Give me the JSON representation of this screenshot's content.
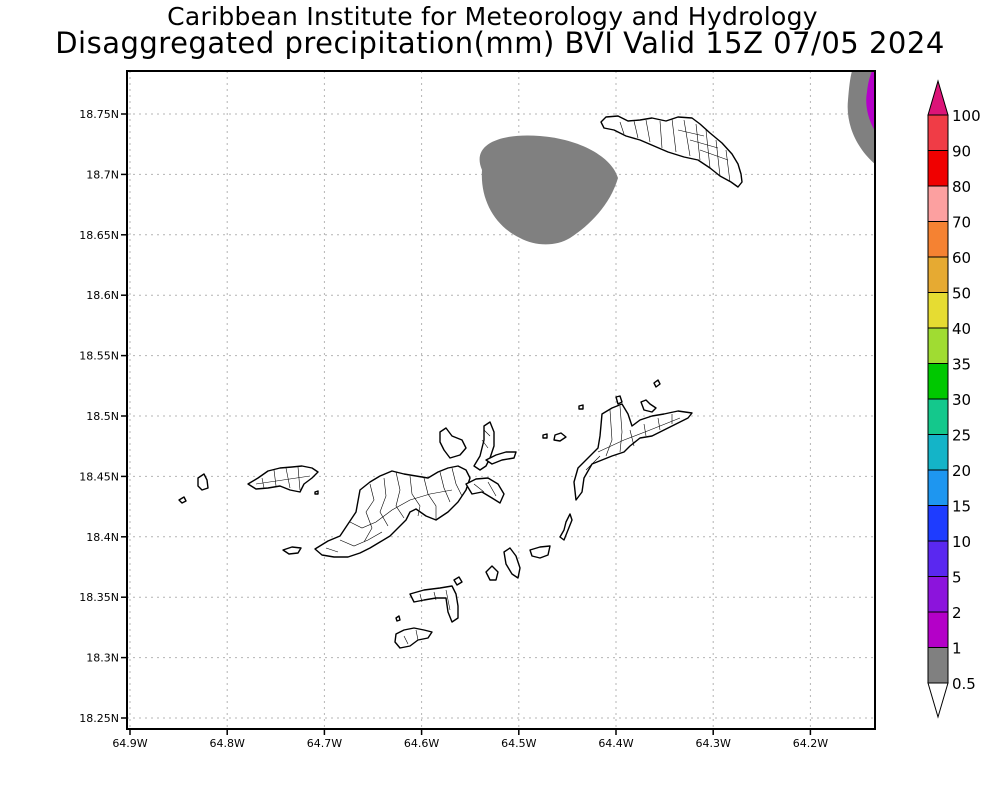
{
  "header": {
    "institution": "Caribbean Institute for Meteorology and Hydrology",
    "product": "Disaggregated precipitation(mm) BVI Valid 15Z 07/05 2024"
  },
  "map": {
    "lat_ticks": [
      "18.75N",
      "18.7N",
      "18.65N",
      "18.6N",
      "18.55N",
      "18.5N",
      "18.45N",
      "18.4N",
      "18.35N",
      "18.3N",
      "18.25N"
    ],
    "lon_ticks": [
      "64.9W",
      "64.8W",
      "64.7W",
      "64.6W",
      "64.5W",
      "64.4W",
      "64.3W",
      "64.2W"
    ],
    "lat_range": [
      18.24,
      18.79
    ],
    "lon_range": [
      -64.903,
      -64.134
    ],
    "precip_areas": [
      {
        "name": "grey-cell-north-center",
        "class": "0.5-1",
        "color": "#808080"
      },
      {
        "name": "grey-cell-northeast-edge",
        "class": "0.5-1",
        "color": "#808080"
      },
      {
        "name": "purple-cell-northeast-edge",
        "class": "1-2",
        "color": "#b400c8"
      }
    ]
  },
  "colorbar": {
    "levels": [
      {
        "label": "100",
        "color": "#dc1478"
      },
      {
        "label": "90",
        "color": "#f03c46"
      },
      {
        "label": "80",
        "color": "#f00000"
      },
      {
        "label": "70",
        "color": "#fca0a0"
      },
      {
        "label": "60",
        "color": "#f58232"
      },
      {
        "label": "50",
        "color": "#e6aa32"
      },
      {
        "label": "40",
        "color": "#e6dc32"
      },
      {
        "label": "35",
        "color": "#a0dc32"
      },
      {
        "label": "30",
        "color": "#00c800"
      },
      {
        "label": "25",
        "color": "#14c88c"
      },
      {
        "label": "20",
        "color": "#14b4c8"
      },
      {
        "label": "15",
        "color": "#1e96f0"
      },
      {
        "label": "10",
        "color": "#1e3cff"
      },
      {
        "label": "5",
        "color": "#5a28f0"
      },
      {
        "label": "2",
        "color": "#8c14dc"
      },
      {
        "label": "1",
        "color": "#b400c8"
      },
      {
        "label": "0.5",
        "color": "#808080"
      }
    ],
    "bottom_color": "#ffffff"
  }
}
